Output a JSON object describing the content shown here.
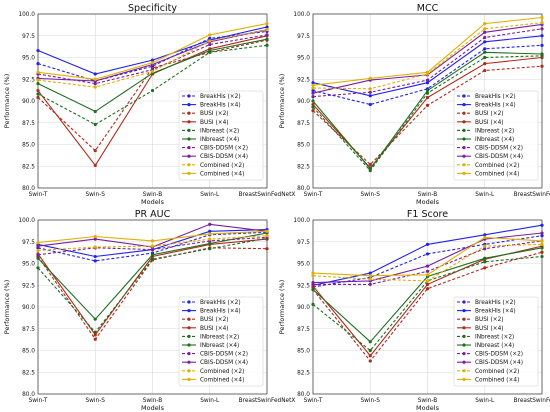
{
  "series_styles": [
    {
      "color": "#2222ee",
      "dash": "3,2",
      "marker": "circle"
    },
    {
      "color": "#2222ee",
      "dash": "",
      "marker": "circle"
    },
    {
      "color": "#b02a1a",
      "dash": "3,2",
      "marker": "circle"
    },
    {
      "color": "#b02a1a",
      "dash": "",
      "marker": "circle"
    },
    {
      "color": "#1f6f1f",
      "dash": "3,2",
      "marker": "circle"
    },
    {
      "color": "#1f6f1f",
      "dash": "",
      "marker": "circle"
    },
    {
      "color": "#7a1fa2",
      "dash": "3,2",
      "marker": "circle"
    },
    {
      "color": "#7a1fa2",
      "dash": "",
      "marker": "circle"
    },
    {
      "color": "#e0b000",
      "dash": "3,2",
      "marker": "circle"
    },
    {
      "color": "#e0b000",
      "dash": "",
      "marker": "circle"
    }
  ],
  "chart_data": [
    {
      "type": "line",
      "title": "Specificity",
      "xlabel": "Models",
      "ylabel": "Performance (%)",
      "categories": [
        "Swin-T",
        "Swin-S",
        "Swin-B",
        "Swin-L",
        "BreastSwinFedNetX"
      ],
      "ylim": [
        80.0,
        100.0
      ],
      "yticks": [
        "80.0",
        "82.5",
        "85.0",
        "87.5",
        "90.0",
        "92.5",
        "95.0",
        "97.5",
        "100.0"
      ],
      "grid": true,
      "legend": "right",
      "series": [
        {
          "name": "BreakHis (×2)",
          "values": [
            94.3,
            92.3,
            94.0,
            97.2,
            98.0
          ]
        },
        {
          "name": "BreakHis (×4)",
          "values": [
            95.8,
            93.1,
            94.7,
            97.0,
            98.5
          ]
        },
        {
          "name": "BUSI (×2)",
          "values": [
            90.4,
            84.3,
            93.8,
            95.6,
            97.0
          ]
        },
        {
          "name": "BUSI (×4)",
          "values": [
            91.2,
            82.6,
            93.1,
            96.0,
            97.5
          ]
        },
        {
          "name": "INbreast (×2)",
          "values": [
            90.8,
            87.3,
            91.2,
            95.6,
            96.4
          ]
        },
        {
          "name": "INbreast (×4)",
          "values": [
            92.0,
            88.8,
            93.2,
            95.8,
            97.1
          ]
        },
        {
          "name": "CBIS-DDSM (×2)",
          "values": [
            93.1,
            92.0,
            93.6,
            96.5,
            97.6
          ]
        },
        {
          "name": "CBIS-DDSM (×4)",
          "values": [
            92.6,
            92.3,
            94.2,
            96.8,
            98.2
          ]
        },
        {
          "name": "Combined (×2)",
          "values": [
            92.4,
            91.6,
            93.4,
            96.9,
            98.2
          ]
        },
        {
          "name": "Combined (×4)",
          "values": [
            93.3,
            92.5,
            94.4,
            97.6,
            98.9
          ]
        }
      ]
    },
    {
      "type": "line",
      "title": "MCC",
      "xlabel": "Models",
      "ylabel": "Performance (%)",
      "categories": [
        "Swin-T",
        "Swin-S",
        "Swin-B",
        "Swin-L",
        "BreastSwinFedNetX"
      ],
      "ylim": [
        80.0,
        100.0
      ],
      "yticks": [
        "80.0",
        "82.5",
        "85.0",
        "87.5",
        "90.0",
        "92.5",
        "95.0",
        "97.5",
        "100.0"
      ],
      "grid": true,
      "legend": "right",
      "series": [
        {
          "name": "BreakHis (×2)",
          "values": [
            91.2,
            89.6,
            91.4,
            96.0,
            96.4
          ]
        },
        {
          "name": "BreakHis (×4)",
          "values": [
            92.1,
            90.6,
            92.1,
            96.8,
            97.5
          ]
        },
        {
          "name": "BUSI (×2)",
          "values": [
            88.9,
            82.7,
            89.5,
            93.5,
            94.0
          ]
        },
        {
          "name": "BUSI (×4)",
          "values": [
            89.6,
            82.3,
            90.4,
            94.3,
            95.0
          ]
        },
        {
          "name": "INbreast (×2)",
          "values": [
            89.3,
            82.0,
            90.9,
            95.0,
            95.2
          ]
        },
        {
          "name": "INbreast (×4)",
          "values": [
            90.0,
            82.2,
            91.2,
            95.6,
            95.4
          ]
        },
        {
          "name": "CBIS-DDSM (×2)",
          "values": [
            90.5,
            91.0,
            92.4,
            97.3,
            98.3
          ]
        },
        {
          "name": "CBIS-DDSM (×4)",
          "values": [
            90.9,
            92.4,
            93.0,
            97.9,
            98.8
          ]
        },
        {
          "name": "Combined (×2)",
          "values": [
            91.5,
            91.4,
            93.1,
            98.3,
            99.0
          ]
        },
        {
          "name": "Combined (×4)",
          "values": [
            91.8,
            92.6,
            93.3,
            98.9,
            99.6
          ]
        }
      ]
    },
    {
      "type": "line",
      "title": "PR AUC",
      "xlabel": "Models",
      "ylabel": "Performance (%)",
      "categories": [
        "Swin-T",
        "Swin-S",
        "Swin-B",
        "Swin-L",
        "BreastSwinFedNetX"
      ],
      "ylim": [
        80.0,
        100.0
      ],
      "yticks": [
        "80.0",
        "82.5",
        "85.0",
        "87.5",
        "90.0",
        "92.5",
        "95.0",
        "97.5",
        "100.0"
      ],
      "grid": true,
      "legend": "right",
      "series": [
        {
          "name": "BreakHis (×2)",
          "values": [
            96.8,
            95.3,
            96.2,
            98.3,
            98.6
          ]
        },
        {
          "name": "BreakHis (×4)",
          "values": [
            97.2,
            95.8,
            96.6,
            98.7,
            98.9
          ]
        },
        {
          "name": "BUSI (×2)",
          "values": [
            95.8,
            86.3,
            95.4,
            96.8,
            96.7
          ]
        },
        {
          "name": "BUSI (×4)",
          "values": [
            96.1,
            86.8,
            95.8,
            97.2,
            97.8
          ]
        },
        {
          "name": "INbreast (×2)",
          "values": [
            94.5,
            87.1,
            95.5,
            96.7,
            97.9
          ]
        },
        {
          "name": "INbreast (×4)",
          "values": [
            95.6,
            88.6,
            96.0,
            97.3,
            98.5
          ]
        },
        {
          "name": "CBIS-DDSM (×2)",
          "values": [
            96.0,
            96.8,
            96.6,
            97.6,
            98.0
          ]
        },
        {
          "name": "CBIS-DDSM (×4)",
          "values": [
            97.0,
            97.8,
            96.9,
            99.5,
            98.7
          ]
        },
        {
          "name": "Combined (×2)",
          "values": [
            96.5,
            96.9,
            97.0,
            97.8,
            98.2
          ]
        },
        {
          "name": "Combined (×4)",
          "values": [
            97.4,
            98.1,
            97.6,
            98.4,
            98.7
          ]
        }
      ]
    },
    {
      "type": "line",
      "title": "F1 Score",
      "xlabel": "Models",
      "ylabel": "Performance (%)",
      "categories": [
        "Swin-T",
        "Swin-S",
        "Swin-B",
        "Swin-L",
        "BreastSwinFedNetX"
      ],
      "ylim": [
        80.0,
        100.0
      ],
      "yticks": [
        "80.0",
        "82.5",
        "85.0",
        "87.5",
        "90.0",
        "92.5",
        "95.0",
        "97.5",
        "100.0"
      ],
      "grid": true,
      "legend": "right",
      "series": [
        {
          "name": "BreakHis (×2)",
          "values": [
            92.3,
            93.4,
            96.1,
            97.2,
            98.2
          ]
        },
        {
          "name": "BreakHis (×4)",
          "values": [
            92.5,
            93.9,
            97.2,
            98.3,
            99.4
          ]
        },
        {
          "name": "BUSI (×2)",
          "values": [
            92.0,
            83.8,
            92.1,
            94.5,
            96.3
          ]
        },
        {
          "name": "BUSI (×4)",
          "values": [
            92.4,
            84.4,
            92.6,
            95.5,
            97.0
          ]
        },
        {
          "name": "INbreast (×2)",
          "values": [
            90.3,
            85.0,
            93.0,
            95.2,
            95.8
          ]
        },
        {
          "name": "INbreast (×4)",
          "values": [
            92.0,
            86.0,
            93.5,
            95.6,
            96.8
          ]
        },
        {
          "name": "CBIS-DDSM (×2)",
          "values": [
            92.6,
            92.6,
            94.1,
            96.7,
            97.6
          ]
        },
        {
          "name": "CBIS-DDSM (×4)",
          "values": [
            92.8,
            93.0,
            94.7,
            97.8,
            98.5
          ]
        },
        {
          "name": "Combined (×2)",
          "values": [
            93.6,
            93.2,
            93.0,
            97.0,
            97.2
          ]
        },
        {
          "name": "Combined (×4)",
          "values": [
            93.9,
            93.6,
            93.7,
            98.0,
            97.6
          ]
        }
      ]
    }
  ]
}
